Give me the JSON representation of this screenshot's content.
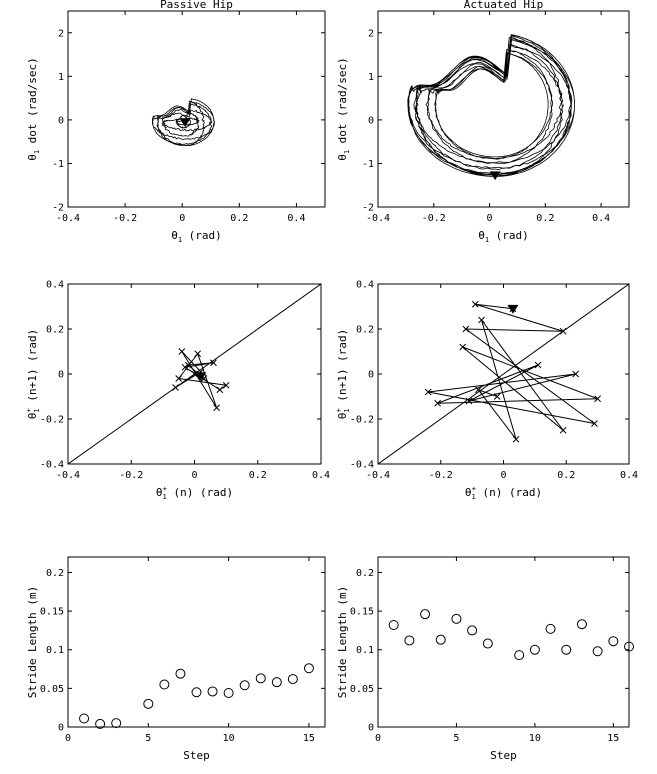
{
  "chart_data": [
    {
      "id": "phase_passive",
      "type": "line",
      "title": "Passive Hip",
      "xlabel": "θ1 (rad)",
      "ylabel": "θ1 dot (rad/sec)",
      "xlim": [
        -0.4,
        0.5
      ],
      "ylim": [
        -2,
        2.5
      ],
      "xticks": [
        -0.4,
        -0.2,
        0,
        0.2,
        0.4
      ],
      "yticks": [
        -2,
        -1,
        0,
        1,
        2
      ],
      "grid": false,
      "orbit": {
        "cx": 0.01,
        "cy": -0.05,
        "rx_min": 0.02,
        "rx_max": 0.11,
        "ry_min": 0.06,
        "ry_max": 0.55,
        "loops": 8
      },
      "marker": {
        "shape": "triangle-down",
        "x": 0.01,
        "y": -0.05
      }
    },
    {
      "id": "phase_actuated",
      "type": "line",
      "title": "Actuated Hip",
      "xlabel": "θ1 (rad)",
      "ylabel": "θ1 dot (rad/sec)",
      "xlim": [
        -0.4,
        0.5
      ],
      "ylim": [
        -2,
        2.5
      ],
      "xticks": [
        -0.4,
        -0.2,
        0,
        0.2,
        0.4
      ],
      "yticks": [
        -2,
        -1,
        0,
        1,
        2
      ],
      "grid": false,
      "orbit": {
        "cx": 0.02,
        "cy": 0.35,
        "rx_min": 0.2,
        "rx_max": 0.3,
        "ry_min": 1.2,
        "ry_max": 1.65,
        "loops": 12
      },
      "marker": {
        "shape": "triangle-down",
        "x": 0.02,
        "y": -1.27
      }
    },
    {
      "id": "return_passive",
      "type": "line",
      "xlabel": "θ1+ (n) (rad)",
      "ylabel": "θ1+ (n+1) (rad)",
      "xlim": [
        -0.4,
        0.4
      ],
      "ylim": [
        -0.4,
        0.4
      ],
      "xticks": [
        -0.4,
        -0.2,
        0,
        0.2,
        0.4
      ],
      "yticks": [
        -0.4,
        -0.2,
        0,
        0.2,
        0.4
      ],
      "grid": false,
      "diagonal": true,
      "x": [
        -0.06,
        0.02,
        -0.04,
        0.07,
        0.01,
        -0.05,
        0.1,
        0.08,
        -0.03,
        0.06,
        -0.02,
        0.03,
        0.0
      ],
      "y": [
        -0.06,
        0.01,
        0.1,
        -0.15,
        0.09,
        -0.02,
        -0.05,
        -0.07,
        0.03,
        0.05,
        0.04,
        -0.02,
        0.0
      ],
      "marker": {
        "shape": "triangle-down",
        "x": 0.02,
        "y": -0.01
      }
    },
    {
      "id": "return_actuated",
      "type": "line",
      "xlabel": "θ1+ (n) (rad)",
      "ylabel": "θ1+ (n+1) (rad)",
      "xlim": [
        -0.4,
        0.4
      ],
      "ylim": [
        -0.4,
        0.4
      ],
      "xticks": [
        -0.4,
        -0.2,
        0,
        0.2,
        0.4
      ],
      "yticks": [
        -0.4,
        -0.2,
        0,
        0.2,
        0.4
      ],
      "grid": false,
      "diagonal": true,
      "x": [
        0.03,
        -0.09,
        0.19,
        -0.12,
        0.29,
        -0.24,
        0.23,
        -0.11,
        0.11,
        -0.21,
        0.3,
        -0.13,
        0.19,
        -0.07,
        0.04,
        -0.08,
        -0.02
      ],
      "y": [
        0.29,
        0.31,
        0.19,
        0.2,
        -0.22,
        -0.08,
        0.0,
        -0.12,
        0.04,
        -0.13,
        -0.11,
        0.12,
        -0.25,
        0.24,
        -0.29,
        -0.07,
        -0.1
      ],
      "marker": {
        "shape": "triangle-down",
        "x": 0.03,
        "y": 0.29
      }
    },
    {
      "id": "stride_passive",
      "type": "scatter",
      "xlabel": "Step",
      "ylabel": "Stride Length (m)",
      "xlim": [
        0,
        16
      ],
      "ylim": [
        0,
        0.22
      ],
      "xticks": [
        0,
        5,
        10,
        15
      ],
      "yticks": [
        0,
        0.05,
        0.1,
        0.15,
        0.2
      ],
      "grid": false,
      "x": [
        1,
        2,
        3,
        5,
        6,
        7,
        8,
        9,
        10,
        11,
        12,
        13,
        14,
        15
      ],
      "y": [
        0.011,
        0.004,
        0.005,
        0.03,
        0.055,
        0.069,
        0.045,
        0.046,
        0.044,
        0.054,
        0.063,
        0.058,
        0.062,
        0.076
      ]
    },
    {
      "id": "stride_actuated",
      "type": "scatter",
      "xlabel": "Step",
      "ylabel": "Stride Length (m)",
      "xlim": [
        0,
        16
      ],
      "ylim": [
        0,
        0.22
      ],
      "xticks": [
        0,
        5,
        10,
        15
      ],
      "yticks": [
        0,
        0.05,
        0.1,
        0.15,
        0.2
      ],
      "grid": false,
      "x": [
        1,
        2,
        3,
        4,
        5,
        6,
        7,
        9,
        10,
        11,
        12,
        13,
        14,
        15,
        16
      ],
      "y": [
        0.132,
        0.112,
        0.146,
        0.113,
        0.14,
        0.125,
        0.108,
        0.093,
        0.1,
        0.127,
        0.1,
        0.133,
        0.098,
        0.111,
        0.104
      ]
    }
  ]
}
